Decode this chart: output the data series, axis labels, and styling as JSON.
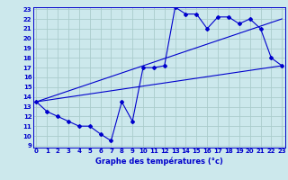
{
  "title": "Graphe des températures (°c)",
  "bg_color": "#cce8ec",
  "grid_color": "#aacccc",
  "line_color": "#0000cc",
  "x_hours": [
    0,
    1,
    2,
    3,
    4,
    5,
    6,
    7,
    8,
    9,
    10,
    11,
    12,
    13,
    14,
    15,
    16,
    17,
    18,
    19,
    20,
    21,
    22,
    23
  ],
  "temp_main": [
    13.5,
    12.5,
    12.0,
    11.5,
    11.0,
    11.0,
    10.2,
    9.5,
    13.5,
    11.5,
    17.0,
    17.0,
    17.2,
    23.2,
    22.5,
    22.5,
    21.0,
    22.2,
    22.2,
    21.5,
    22.0,
    21.0,
    18.0,
    17.2
  ],
  "line2_x": [
    0,
    23
  ],
  "line2_y": [
    13.5,
    22.0
  ],
  "line3_x": [
    0,
    23
  ],
  "line3_y": [
    13.5,
    17.2
  ],
  "ylim_min": 9,
  "ylim_max": 23,
  "xlim_min": 0,
  "xlim_max": 23,
  "yticks": [
    9,
    10,
    11,
    12,
    13,
    14,
    15,
    16,
    17,
    18,
    19,
    20,
    21,
    22,
    23
  ],
  "xticks": [
    0,
    1,
    2,
    3,
    4,
    5,
    6,
    7,
    8,
    9,
    10,
    11,
    12,
    13,
    14,
    15,
    16,
    17,
    18,
    19,
    20,
    21,
    22,
    23
  ],
  "tick_fontsize": 5.0,
  "label_fontsize": 6.0
}
